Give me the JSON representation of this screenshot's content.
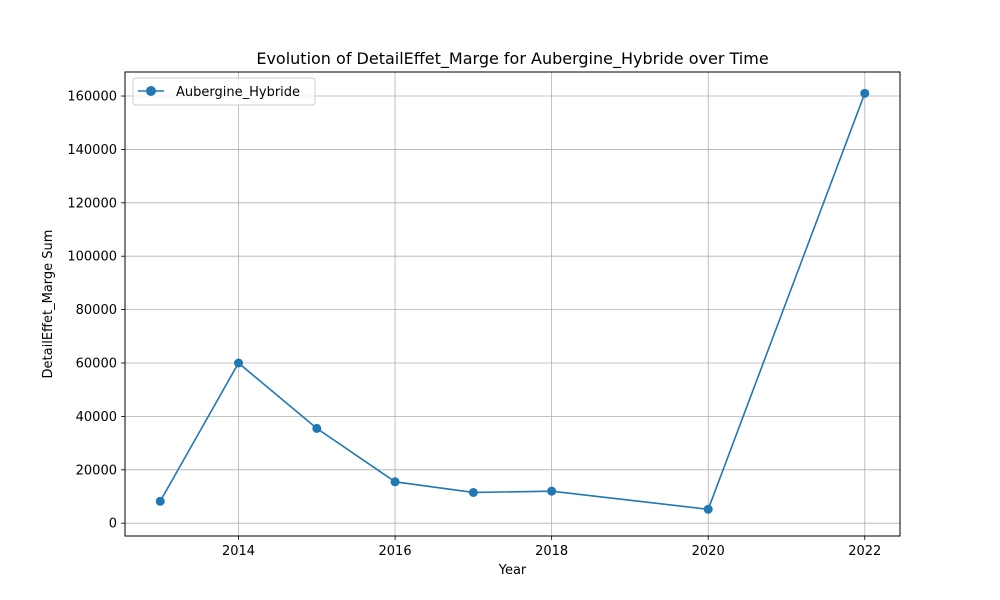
{
  "chart_data": {
    "type": "line",
    "title": "Evolution of DetailEffet_Marge for Aubergine_Hybride over Time",
    "xlabel": "Year",
    "ylabel": "DetailEffet_Marge Sum",
    "x": [
      2013,
      2014,
      2015,
      2016,
      2017,
      2018,
      2020,
      2022
    ],
    "series": [
      {
        "name": "Aubergine_Hybride",
        "values": [
          8200,
          60000,
          35500,
          15500,
          11500,
          12000,
          5200,
          161000
        ],
        "color": "#1f77b4",
        "marker": "circle"
      }
    ],
    "xlim": [
      2012.55,
      2022.45
    ],
    "ylim": [
      -4800,
      169000
    ],
    "x_ticks": [
      2014,
      2016,
      2018,
      2020,
      2022
    ],
    "y_ticks": [
      0,
      20000,
      40000,
      60000,
      80000,
      100000,
      120000,
      140000,
      160000
    ],
    "grid": true,
    "legend_position": "top-left"
  }
}
